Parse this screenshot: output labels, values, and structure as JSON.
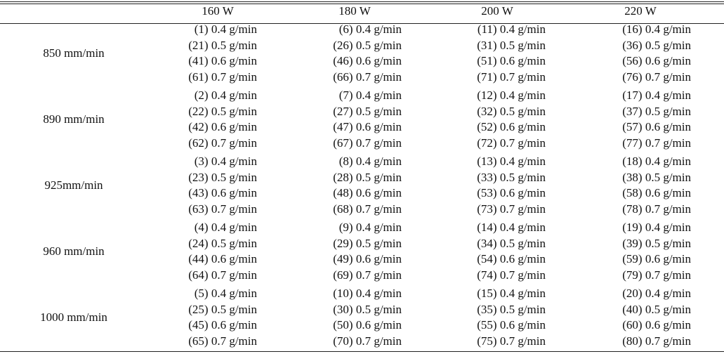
{
  "table": {
    "header": [
      "160 W",
      "180 W",
      "200 W",
      "220 W"
    ],
    "rows": [
      {
        "label": "850 mm/min",
        "cells": [
          [
            "(1) 0.4 g/min",
            "(21) 0.5 g/min",
            "(41) 0.6 g/min",
            "(61) 0.7 g/min"
          ],
          [
            "(6) 0.4 g/min",
            "(26) 0.5 g/min",
            "(46) 0.6 g/min",
            "(66) 0.7 g/min"
          ],
          [
            "(11) 0.4 g/min",
            "(31) 0.5 g/min",
            "(51) 0.6 g/min",
            "(71) 0.7 g/min"
          ],
          [
            "(16) 0.4 g/min",
            "(36) 0.5 g/min",
            "(56) 0.6 g/min",
            "(76) 0.7 g/min"
          ]
        ]
      },
      {
        "label": "890 mm/min",
        "cells": [
          [
            "(2) 0.4 g/min",
            "(22) 0.5 g/min",
            "(42) 0.6 g/min",
            "(62) 0.7 g/min"
          ],
          [
            "(7) 0.4 g/min",
            "(27) 0.5 g/min",
            "(47) 0.6 g/min",
            "(67) 0.7 g/min"
          ],
          [
            "(12) 0.4 g/min",
            "(32) 0.5 g/min",
            "(52) 0.6 g/min",
            "(72) 0.7 g/min"
          ],
          [
            "(17) 0.4 g/min",
            "(37) 0.5 g/min",
            "(57) 0.6 g/min",
            "(77) 0.7 g/min"
          ]
        ]
      },
      {
        "label": "925mm/min",
        "cells": [
          [
            "(3) 0.4 g/min",
            "(23) 0.5 g/min",
            "(43) 0.6 g/min",
            "(63) 0.7 g/min"
          ],
          [
            "(8) 0.4 g/min",
            "(28) 0.5 g/min",
            "(48) 0.6 g/min",
            "(68) 0.7 g/min"
          ],
          [
            "(13) 0.4 g/min",
            "(33) 0.5 g/min",
            "(53) 0.6 g/min",
            "(73) 0.7 g/min"
          ],
          [
            "(18) 0.4 g/min",
            "(38) 0.5 g/min",
            "(58) 0.6 g/min",
            "(78) 0.7 g/min"
          ]
        ]
      },
      {
        "label": "960 mm/min",
        "cells": [
          [
            "(4) 0.4 g/min",
            "(24) 0.5 g/min",
            "(44) 0.6 g/min",
            "(64) 0.7 g/min"
          ],
          [
            "(9) 0.4 g/min",
            "(29) 0.5 g/min",
            "(49) 0.6 g/min",
            "(69) 0.7 g/min"
          ],
          [
            "(14) 0.4 g/min",
            "(34) 0.5 g/min",
            "(54) 0.6 g/min",
            "(74) 0.7 g/min"
          ],
          [
            "(19) 0.4 g/min",
            "(39) 0.5 g/min",
            "(59) 0.6 g/min",
            "(79) 0.7 g/min"
          ]
        ]
      },
      {
        "label": "1000 mm/min",
        "cells": [
          [
            "(5) 0.4 g/min",
            "(25) 0.5 g/min",
            "(45) 0.6 g/min",
            "(65) 0.7 g/min"
          ],
          [
            "(10) 0.4 g/min",
            "(30) 0.5 g/min",
            "(50) 0.6 g/min",
            "(70) 0.7 g/min"
          ],
          [
            "(15) 0.4 g/min",
            "(35) 0.5 g/min",
            "(55) 0.6 g/min",
            "(75) 0.7 g/min"
          ],
          [
            "(20) 0.4 g/min",
            "(40) 0.5 g/min",
            "(60) 0.6 g/min",
            "(80) 0.7 g/min"
          ]
        ]
      }
    ]
  }
}
